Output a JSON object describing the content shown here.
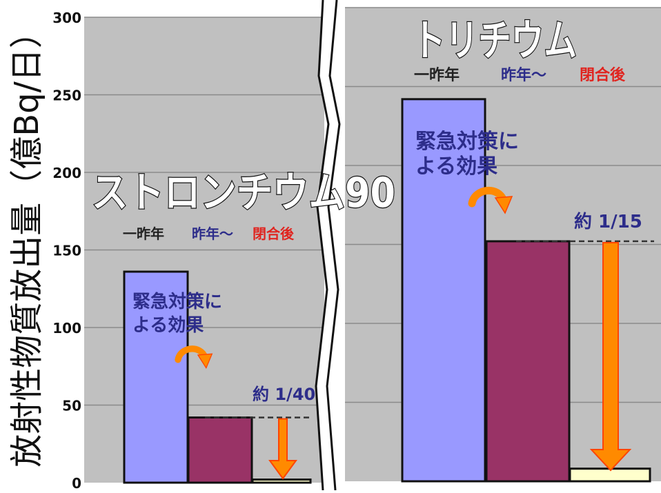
{
  "chart_data": {
    "type": "bar",
    "ylabel": "放射性物質放出量（億Bq/日）",
    "ylim": [
      0,
      300
    ],
    "yticks": [
      "0",
      "50",
      "100",
      "150",
      "200",
      "250",
      "300"
    ],
    "grid": true,
    "panels": [
      {
        "title": "ストロンチウム90",
        "legend": [
          {
            "label": "一昨年",
            "color": "#222222"
          },
          {
            "label": "昨年～",
            "color": "#2d2d8a"
          },
          {
            "label": "閉合後",
            "color": "#e0241f"
          }
        ],
        "categories": [
          "一昨年",
          "昨年～",
          "閉合後"
        ],
        "values": [
          136,
          42,
          2
        ],
        "colors": [
          "#9999ff",
          "#993366",
          "#ffffcc"
        ],
        "annotation_effect": "緊急対策による効果",
        "annotation_effect_lines": [
          "緊急対策に",
          "よる効果"
        ],
        "annotation_ratio": "約 1/40"
      },
      {
        "title": "トリチウム",
        "legend": [
          {
            "label": "一昨年",
            "color": "#222222"
          },
          {
            "label": "昨年～",
            "color": "#2d2d8a"
          },
          {
            "label": "閉合後",
            "color": "#e0241f"
          }
        ],
        "categories": [
          "一昨年",
          "昨年～",
          "閉合後"
        ],
        "values": [
          242,
          152,
          8
        ],
        "colors": [
          "#9999ff",
          "#993366",
          "#ffffcc"
        ],
        "annotation_effect": "緊急対策による効果",
        "annotation_effect_lines": [
          "緊急対策に",
          "よる効果"
        ],
        "annotation_ratio": "約 1/15"
      }
    ]
  }
}
